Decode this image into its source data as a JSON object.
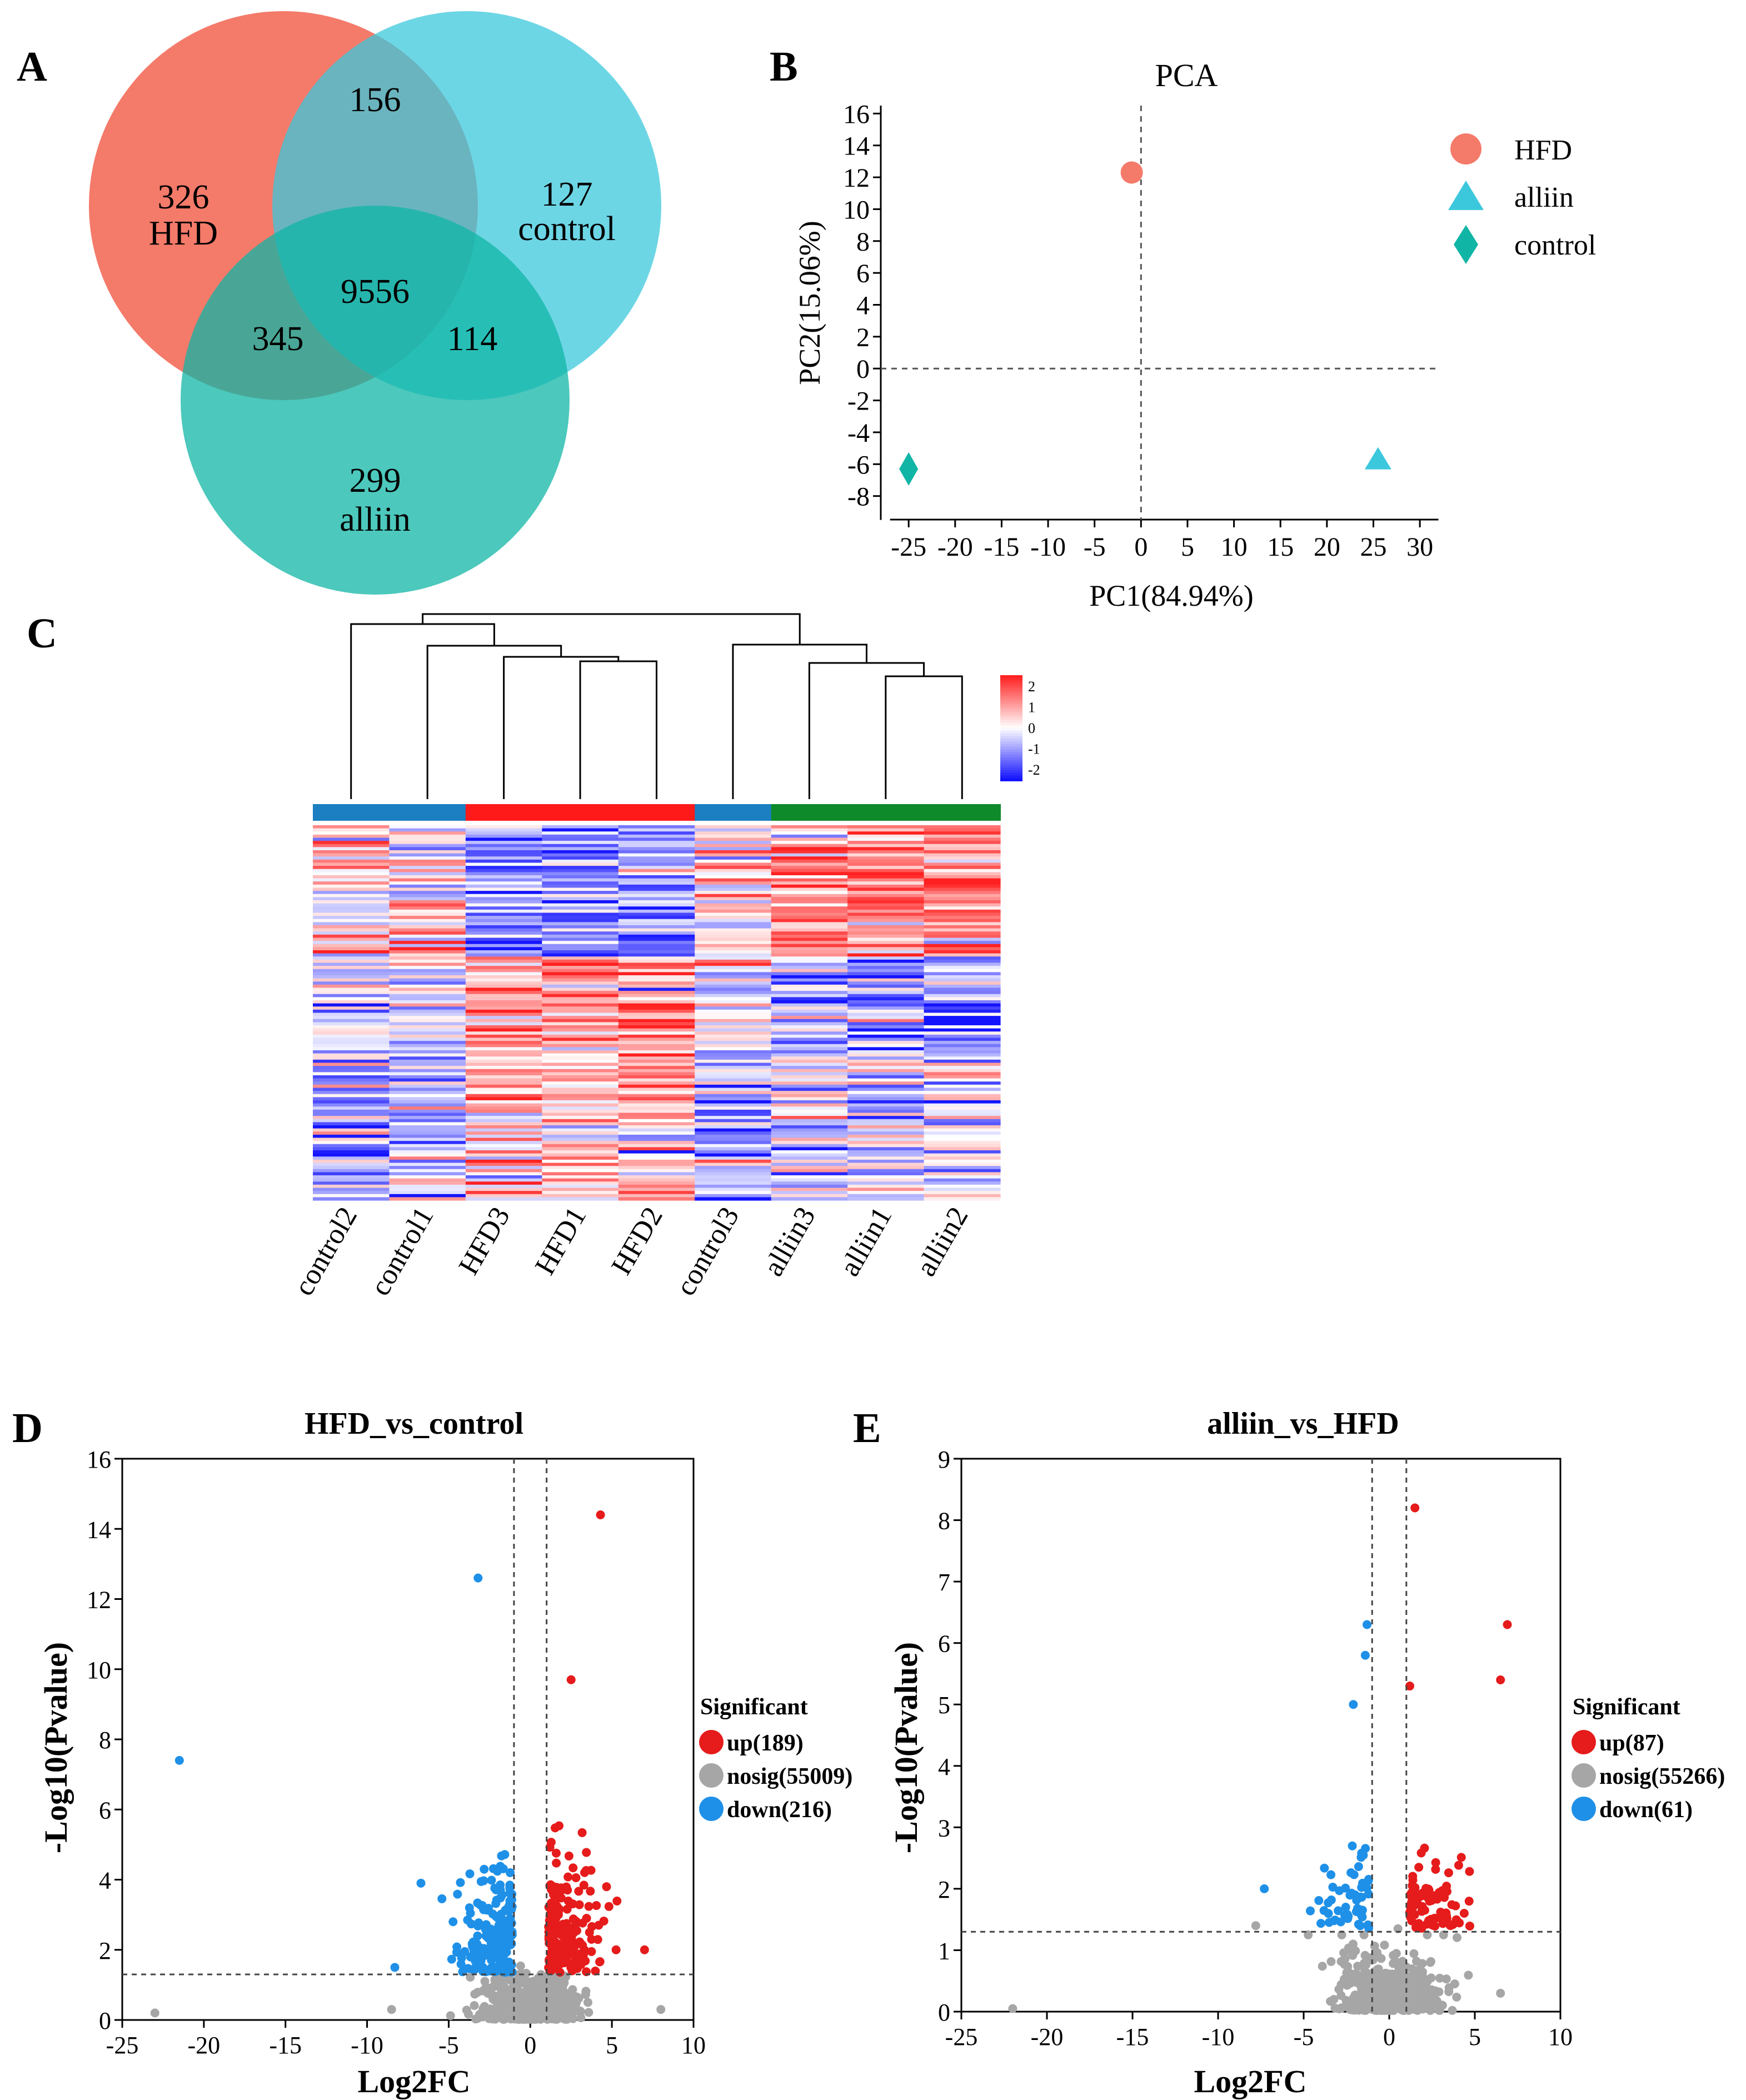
{
  "colors": {
    "hfd": "#f47a6a",
    "control": "#3cc8dc",
    "alliin": "#10b5a6",
    "up": "#e61b1b",
    "down": "#1e90e8",
    "nosig": "#a6a6a6",
    "bar_control": "#1b7fc1",
    "bar_hfd": "#ff1a1a",
    "bar_alliin": "#0f8a2a"
  },
  "chart_data": [
    {
      "panel": "A",
      "type": "venn",
      "sets": [
        "HFD",
        "control",
        "alliin"
      ],
      "regions": {
        "HFD_only": "326",
        "control_only": "127",
        "alliin_only": "299",
        "HFD_control": "156",
        "HFD_alliin": "345",
        "control_alliin": "114",
        "all": "9556"
      }
    },
    {
      "panel": "B",
      "type": "scatter",
      "title": "PCA",
      "xlabel": "PC1(84.94%)",
      "ylabel": "PC2(15.06%)",
      "xlim": [
        -28,
        34
      ],
      "ylim": [
        -10,
        16.5
      ],
      "xticks": [
        -25,
        -20,
        -15,
        -10,
        -5,
        0,
        5,
        10,
        15,
        20,
        25,
        30
      ],
      "yticks": [
        16,
        14,
        12,
        10,
        8,
        6,
        4,
        2,
        0,
        -2,
        -4,
        -6,
        -8
      ],
      "points": [
        {
          "name": "HFD",
          "x": -1,
          "y": 12.3,
          "marker": "circle"
        },
        {
          "name": "alliin",
          "x": 25.5,
          "y": -5.7,
          "marker": "triangle"
        },
        {
          "name": "control",
          "x": -25,
          "y": -6.3,
          "marker": "diamond"
        }
      ],
      "legend": [
        "HFD",
        "alliin",
        "control"
      ],
      "legend_position": "top-right"
    },
    {
      "panel": "C",
      "type": "heatmap",
      "columns": [
        "control2",
        "control1",
        "HFD3",
        "HFD1",
        "HFD2",
        "control3",
        "alliin3",
        "alliin1",
        "alliin2"
      ],
      "groups": [
        "control",
        "control",
        "HFD",
        "HFD",
        "HFD",
        "control",
        "alliin",
        "alliin",
        "alliin"
      ],
      "color_scale": {
        "min": -2,
        "max": 2,
        "ticks": [
          "2",
          "1",
          "0",
          "-1",
          "-2"
        ]
      },
      "n_rows": 120
    },
    {
      "panel": "D",
      "type": "scatter",
      "title": "HFD_vs_control",
      "xlabel": "Log2FC",
      "ylabel": "-Log10(Pvalue)",
      "xlim": [
        -25,
        10
      ],
      "ylim": [
        0,
        16
      ],
      "xticks": [
        -25,
        -20,
        -15,
        -10,
        -5,
        0,
        5,
        10
      ],
      "yticks": [
        0,
        2,
        4,
        6,
        8,
        10,
        12,
        14,
        16
      ],
      "thresholds": {
        "x": [
          -1,
          1
        ],
        "y": 1.3
      },
      "legend_title": "Significant",
      "legend": [
        "up(189)",
        "nosig(55009)",
        "down(216)"
      ],
      "highlight_points": [
        {
          "x": 4.3,
          "y": 14.4,
          "group": "up"
        },
        {
          "x": 2.5,
          "y": 9.7,
          "group": "up"
        },
        {
          "x": 7.0,
          "y": 2.0,
          "group": "up"
        },
        {
          "x": -3.2,
          "y": 12.6,
          "group": "down"
        },
        {
          "x": -21.5,
          "y": 7.4,
          "group": "down"
        },
        {
          "x": -8.3,
          "y": 1.5,
          "group": "down"
        },
        {
          "x": -6.7,
          "y": 3.9,
          "group": "down"
        },
        {
          "x": -23,
          "y": 0.2,
          "group": "nosig"
        },
        {
          "x": -8.5,
          "y": 0.3,
          "group": "nosig"
        },
        {
          "x": 8.0,
          "y": 0.3,
          "group": "nosig"
        }
      ]
    },
    {
      "panel": "E",
      "type": "scatter",
      "title": "alliin_vs_HFD",
      "xlabel": "Log2FC",
      "ylabel": "-Log10(Pvalue)",
      "xlim": [
        -25,
        10
      ],
      "ylim": [
        0,
        9
      ],
      "xticks": [
        -25,
        -20,
        -15,
        -10,
        -5,
        0,
        5,
        10
      ],
      "yticks": [
        0,
        1,
        2,
        3,
        4,
        5,
        6,
        7,
        8,
        9
      ],
      "thresholds": {
        "x": [
          -1,
          1
        ],
        "y": 1.3
      },
      "legend_title": "Significant",
      "legend": [
        "up(87)",
        "nosig(55266)",
        "down(61)"
      ],
      "highlight_points": [
        {
          "x": 1.5,
          "y": 8.2,
          "group": "up"
        },
        {
          "x": 6.9,
          "y": 6.3,
          "group": "up"
        },
        {
          "x": 6.5,
          "y": 5.4,
          "group": "up"
        },
        {
          "x": 1.2,
          "y": 5.3,
          "group": "up"
        },
        {
          "x": -1.3,
          "y": 6.3,
          "group": "down"
        },
        {
          "x": -1.4,
          "y": 5.8,
          "group": "down"
        },
        {
          "x": -2.1,
          "y": 5.0,
          "group": "down"
        },
        {
          "x": -7.3,
          "y": 2.0,
          "group": "down"
        },
        {
          "x": -22,
          "y": 0.05,
          "group": "nosig"
        },
        {
          "x": -7.8,
          "y": 1.4,
          "group": "nosig"
        },
        {
          "x": 6.5,
          "y": 0.3,
          "group": "nosig"
        }
      ]
    }
  ]
}
